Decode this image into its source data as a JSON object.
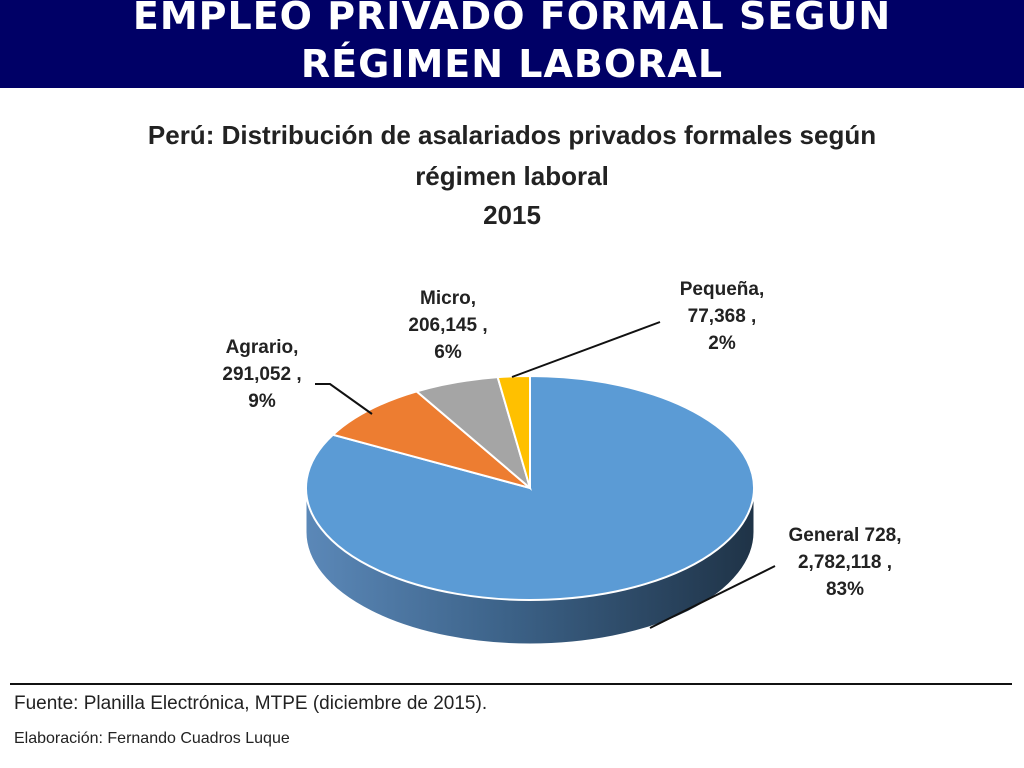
{
  "header": {
    "title_line1": "EMPLEO PRIVADO FORMAL SEGÚN",
    "title_line2": "RÉGIMEN LABORAL"
  },
  "chart_data": {
    "type": "pie",
    "title_line1": "Perú: Distribución de asalariados privados formales según",
    "title_line2": "régimen laboral",
    "subtitle": "2015",
    "categories": [
      "General 728",
      "Agrario",
      "Micro",
      "Pequeña"
    ],
    "values": [
      2782118,
      291052,
      206145,
      77368
    ],
    "percent_labels": [
      "83%",
      "9%",
      "6%",
      "2%"
    ],
    "value_labels": [
      "2,782,118",
      "291,052",
      "206,145",
      "77,368"
    ],
    "colors": [
      "#5b9bd5",
      "#ed7d31",
      "#a5a5a5",
      "#ffc000"
    ],
    "style": "3d",
    "legend": "none"
  },
  "footer": {
    "source": "Fuente: Planilla Electrónica, MTPE (diciembre de 2015).",
    "credit": "Elaboración: Fernando Cuadros Luque"
  }
}
